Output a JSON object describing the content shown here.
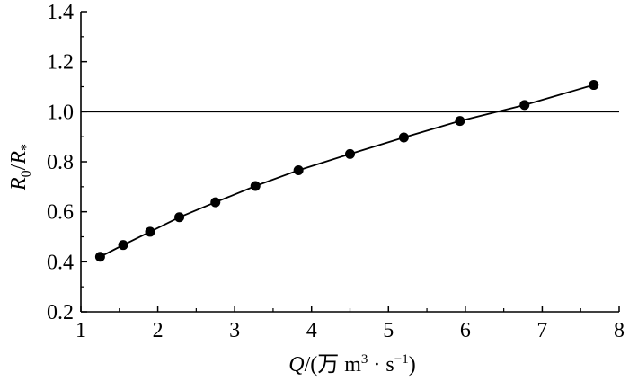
{
  "chart_data": {
    "type": "line",
    "xlabel": {
      "var": "Q",
      "pre": "/(万 m",
      "sup1": "3",
      "mid": " · s",
      "sup2": "−1",
      "post": ")"
    },
    "ylabel": {
      "var": "R",
      "sub1": "0",
      "slash": "/",
      "var2": "R",
      "sub2": "*"
    },
    "xlim": [
      1,
      8
    ],
    "ylim": [
      0.2,
      1.4
    ],
    "xticks": [
      1,
      2,
      3,
      4,
      5,
      6,
      7,
      8
    ],
    "yticks": [
      0.2,
      0.4,
      0.6,
      0.8,
      1.0,
      1.2,
      1.4
    ],
    "ytick_labels": [
      "0.2",
      "0.4",
      "0.6",
      "0.8",
      "1.0",
      "1.2",
      "1.4"
    ],
    "reference_line": {
      "y": 1.0
    },
    "grid": false,
    "series": [
      {
        "x": [
          1.25,
          1.55,
          1.9,
          2.28,
          2.75,
          3.27,
          3.83,
          4.5,
          5.2,
          5.93,
          6.77,
          7.67
        ],
        "y": [
          0.42,
          0.467,
          0.52,
          0.578,
          0.638,
          0.703,
          0.766,
          0.831,
          0.897,
          0.963,
          1.027,
          1.107
        ]
      }
    ],
    "colors": {
      "line": "#000000",
      "marker": "#000000",
      "axis": "#000000"
    }
  }
}
